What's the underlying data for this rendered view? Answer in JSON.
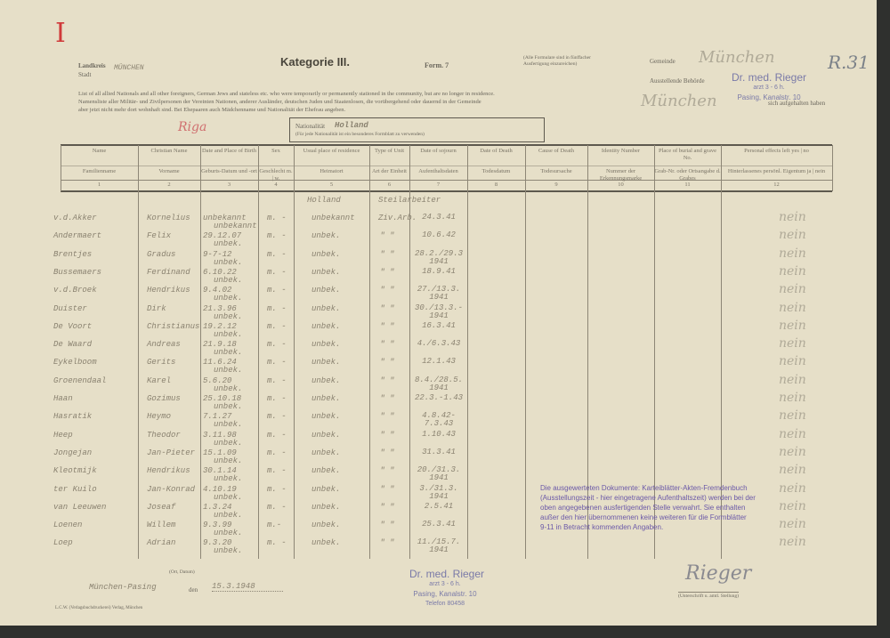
{
  "header": {
    "roman_mark": "I",
    "ref_mark": "R.31",
    "land_label": "Landkreis",
    "stadt_label": "Stadt",
    "city": "MÜNCHEN",
    "title": "Kategorie III.",
    "form": "Form. 7",
    "note_line1": "(Alle Formulare sind in fünffacher",
    "note_line2": "Ausfertigung einzureichen)",
    "gemeinde_label": "Gemeinde",
    "gemeinde_value": "München",
    "behoerde_label": "Ausstellende Behörde",
    "behoerde_value": "München",
    "intro_en": "List of all allied Nationals and all other foreigners, German Jews and stateless etc. who were temporarily or permanently stationed in the community, but are no longer in residence.",
    "intro_de1": "Namensliste aller Militär- und Zivilpersonen der Vereinten Nationen, anderer Ausländer, deutschen Juden und Staatenlosen, die vorübergehend oder dauernd in der Gemeinde",
    "intro_de2": "aber jetzt nicht mehr dort wohnhaft sind. Bei Ehepaaren auch Mädchenname und Nationalität der Ehefrau angeben.",
    "intro_tail": "sich aufgehalten haben",
    "nationality_label": "Nationalität",
    "nationality": "Holland",
    "nationality_note": "(Für jede Nationalität ist ein besonderes Formblatt zu verwenden)",
    "red_handwriting": "Riga"
  },
  "columns": [
    {
      "en": "Name",
      "de": "Familienname",
      "no": "1"
    },
    {
      "en": "Christian Name",
      "de": "Vorname",
      "no": "2"
    },
    {
      "en": "Date and Place of Birth",
      "de": "Geburts-Datum und -ort",
      "no": "3"
    },
    {
      "en": "Sex",
      "de": "Geschlecht m. | w.",
      "no": "4"
    },
    {
      "en": "Usual place of residence",
      "de": "Heimatort",
      "no": "5"
    },
    {
      "en": "Type of Unit",
      "de": "Art der Einheit",
      "no": "6"
    },
    {
      "en": "Date of sojourn",
      "de": "Aufenthaltsdaten",
      "no": "7"
    },
    {
      "en": "Date of Death",
      "de": "Todesdatum",
      "no": "8"
    },
    {
      "en": "Cause of Death",
      "de": "Todesursache",
      "no": "9"
    },
    {
      "en": "Identity Number",
      "de": "Nummer der Erkennungsmarke",
      "no": "10"
    },
    {
      "en": "Place of burial and grave No.",
      "de": "Grab-Nr. oder Ortsangabe d. Grabes",
      "no": "11"
    },
    {
      "en": "Personal effects left  yes | no",
      "de": "Hinterlassenes persönl. Eigentum ja | nein",
      "no": "12"
    }
  ],
  "first_row_extra": {
    "residence": "Holland",
    "type": "Steilarbeiter"
  },
  "rows": [
    {
      "name": "v.d.Akker",
      "first": "Kornelius",
      "birth": "unbekannt",
      "place": "unbekannt",
      "sex": "m. -",
      "res": "unbekannt",
      "type": "Ziv.Arb.",
      "date": "24.3.41",
      "effects": "nein"
    },
    {
      "name": "Andermaert",
      "first": "Felix",
      "birth": "29.12.07",
      "place": "unbek.",
      "sex": "m. -",
      "res": "unbek.",
      "type": "\"  \"",
      "date": "10.6.42",
      "effects": "nein"
    },
    {
      "name": "Brentjes",
      "first": "Gradus",
      "birth": "9-7-12",
      "place": "unbek.",
      "sex": "m. -",
      "res": "unbek.",
      "type": "\"  \"",
      "date": "28.2./29.3 1941",
      "effects": "nein"
    },
    {
      "name": "Bussemaers",
      "first": "Ferdinand",
      "birth": "6.10.22",
      "place": "unbek.",
      "sex": "m. -",
      "res": "unbek.",
      "type": "\"  \"",
      "date": "18.9.41",
      "effects": "nein"
    },
    {
      "name": "v.d.Broek",
      "first": "Hendrikus",
      "birth": "9.4.02",
      "place": "unbek.",
      "sex": "m. -",
      "res": "unbek.",
      "type": "\"  \"",
      "date": "27./13.3. 1941",
      "effects": "nein"
    },
    {
      "name": "Duister",
      "first": "Dirk",
      "birth": "21.3.96",
      "place": "unbek.",
      "sex": "m. -",
      "res": "unbek.",
      "type": "\"  \"",
      "date": "30./13.3.- 1941",
      "effects": "nein"
    },
    {
      "name": "De Voort",
      "first": "Christianus",
      "birth": "19.2.12",
      "place": "unbek.",
      "sex": "m. -",
      "res": "unbek.",
      "type": "\"  \"",
      "date": "16.3.41",
      "effects": "nein"
    },
    {
      "name": "De Waard",
      "first": "Andreas",
      "birth": "21.9.18",
      "place": "unbek.",
      "sex": "m. -",
      "res": "unbek.",
      "type": "\"  \"",
      "date": "4./6.3.43",
      "effects": "nein"
    },
    {
      "name": "Eykelboom",
      "first": "Gerits",
      "birth": "11.6.24",
      "place": "unbek.",
      "sex": "m. -",
      "res": "unbek.",
      "type": "\"  \"",
      "date": "12.1.43",
      "effects": "nein"
    },
    {
      "name": "Groenendaal",
      "first": "Karel",
      "birth": "5.6.20",
      "place": "unbek.",
      "sex": "m. -",
      "res": "unbek.",
      "type": "\"  \"",
      "date": "8.4./28.5. 1941",
      "effects": "nein"
    },
    {
      "name": "Haan",
      "first": "Gozimus",
      "birth": "25.10.18",
      "place": "unbek.",
      "sex": "m. -",
      "res": "unbek.",
      "type": "\"  \"",
      "date": "22.3.-1.43",
      "effects": "nein"
    },
    {
      "name": "Hasratik",
      "first": "Heymo",
      "birth": "7.1.27",
      "place": "unbek.",
      "sex": "m. -",
      "res": "unbek.",
      "type": "\"  \"",
      "date": "4.8.42-7.3.43",
      "effects": "nein"
    },
    {
      "name": "Heep",
      "first": "Theodor",
      "birth": "3.11.98",
      "place": "unbek.",
      "sex": "m. -",
      "res": "unbek.",
      "type": "\"  \"",
      "date": "1.10.43",
      "effects": "nein"
    },
    {
      "name": "Jongejan",
      "first": "Jan-Pieter",
      "birth": "15.1.09",
      "place": "unbek.",
      "sex": "m. -",
      "res": "unbek.",
      "type": "\"  \"",
      "date": "31.3.41",
      "effects": "nein"
    },
    {
      "name": "Kleotmijk",
      "first": "Hendrikus",
      "birth": "30.1.14",
      "place": "unbek.",
      "sex": "m. -",
      "res": "unbek.",
      "type": "\"  \"",
      "date": "20./31.3. 1941",
      "effects": "nein"
    },
    {
      "name": "ter Kuilo",
      "first": "Jan-Konrad",
      "birth": "4.10.19",
      "place": "unbek.",
      "sex": "m. -",
      "res": "unbek.",
      "type": "\"  \"",
      "date": "3./31.3. 1941",
      "effects": "nein"
    },
    {
      "name": "van Leeuwen",
      "first": "Joseaf",
      "birth": "1.3.24",
      "place": "unbek.",
      "sex": "m. -",
      "res": "unbek.",
      "type": "\"  \"",
      "date": "2.5.41",
      "effects": "nein"
    },
    {
      "name": "Loenen",
      "first": "Willem",
      "birth": "9.3.99",
      "place": "unbek.",
      "sex": "m.-",
      "res": "unbek.",
      "type": "\"  \"",
      "date": "25.3.41",
      "effects": "nein"
    },
    {
      "name": "Loep",
      "first": "Adrian",
      "birth": "9.3.20",
      "place": "unbek.",
      "sex": "m. -",
      "res": "unbek.",
      "type": "\"  \"",
      "date": "11./15.7. 1941",
      "effects": "nein"
    }
  ],
  "purple_note": [
    "Die ausgewerteten Dokumente: Karteiblätter-Akten-Fremdenbuch",
    "(Ausstellungszeit - hier eingetragene Aufenthaltszeit) werden bei der",
    "oben angegebenen ausfertigenden Stelle verwahrt. Sie enthalten",
    "außer den hier übernommenen keine weiteren für die Formblätter",
    "9-11 in Betracht kommenden Angaben."
  ],
  "stamp": {
    "line1": "Dr. med. Rieger",
    "line2": "arzt 3 - 6 h.",
    "line3": "Pasing, Kanalstr. 10",
    "line4": "Telefon 80458"
  },
  "footer": {
    "place_date_label": "(Ort, Datum)",
    "place": "München-Pasing",
    "den_label": "den",
    "date": "15.3.1948",
    "signature_label": "(Unterschrift u. amtl. Stellung)",
    "signature": "Rieger",
    "printer": "L.C.W. (Verlagsbuchdruckerei) Verlag, München"
  }
}
